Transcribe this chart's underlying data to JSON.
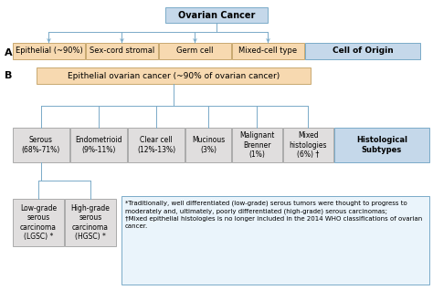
{
  "title": "Ovarian Cancer",
  "title_box_color": "#c5d8ea",
  "title_box_edge": "#7aaac8",
  "section_a_label": "A",
  "section_b_label": "B",
  "row_a_cells": [
    "Epithelial (~90%)",
    "Sex-cord stromal",
    "Germ cell",
    "Mixed-cell type"
  ],
  "row_a_last_cell": "Cell of Origin",
  "row_a_color": "#f7d9b0",
  "row_a_edge": "#c8a870",
  "row_a_last_color": "#c5d8ea",
  "row_a_last_edge": "#7aaac8",
  "eoc_box_text": "Epithelial ovarian cancer (~90% of ovarian cancer)",
  "eoc_box_color": "#f7d9b0",
  "eoc_box_edge": "#c8a870",
  "histo_cells": [
    "Serous\n(68%-71%)",
    "Endometrioid\n(9%-11%)",
    "Clear cell\n(12%-13%)",
    "Mucinous\n(3%)",
    "Malignant\nBrenner\n(1%)",
    "Mixed\nhistologies\n(6%) †"
  ],
  "histo_last_cell": "Histological\nSubtypes",
  "histo_color": "#e0dede",
  "histo_edge": "#aaaaaa",
  "histo_last_color": "#c5d8ea",
  "histo_last_edge": "#7aaac8",
  "sub_cells": [
    "Low-grade\nserous\ncarcinoma\n(LGSC) *",
    "High-grade\nserous\ncarcinoma\n(HGSC) *"
  ],
  "sub_color": "#e0dede",
  "sub_edge": "#aaaaaa",
  "footnote_text": "*Traditionally, well differentiated (low-grade) serous tumors were thought to progress to\nmoderately and, ultimately, poorly differentiated (high-grade) serous carcinomas;\n†Mixed epithelial histologies is no longer included in the 2014 WHO classifications of ovarian\ncancer.",
  "footnote_box_color": "#eaf4fb",
  "footnote_box_edge": "#7aaac8",
  "line_color": "#7aaac8",
  "bg_color": "#ffffff",
  "arrow_color": "#7aaac8"
}
